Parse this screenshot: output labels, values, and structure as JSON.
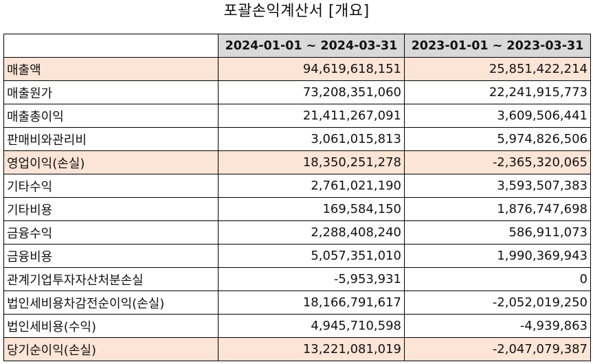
{
  "title": "포괄손익계산서 [개요]",
  "table": {
    "columns": [
      "",
      "2024-01-01 ~ 2024-03-31",
      "2023-01-01 ~ 2023-03-31"
    ],
    "highlight_color": "#fce4d6",
    "header_color": "#d9d9d9",
    "rows": [
      {
        "label": "매출액",
        "v1": "94,619,618,151",
        "v2": "25,851,422,214",
        "highlight": true
      },
      {
        "label": "매출원가",
        "v1": "73,208,351,060",
        "v2": "22,241,915,773",
        "highlight": false
      },
      {
        "label": "매출총이익",
        "v1": "21,411,267,091",
        "v2": "3,609,506,441",
        "highlight": false
      },
      {
        "label": "판매비와관리비",
        "v1": "3,061,015,813",
        "v2": "5,974,826,506",
        "highlight": false
      },
      {
        "label": "영업이익(손실)",
        "v1": "18,350,251,278",
        "v2": "-2,365,320,065",
        "highlight": true
      },
      {
        "label": "기타수익",
        "v1": "2,761,021,190",
        "v2": "3,593,507,383",
        "highlight": false
      },
      {
        "label": "기타비용",
        "v1": "169,584,150",
        "v2": "1,876,747,698",
        "highlight": false
      },
      {
        "label": "금융수익",
        "v1": "2,288,408,240",
        "v2": "586,911,073",
        "highlight": false
      },
      {
        "label": "금융비용",
        "v1": "5,057,351,010",
        "v2": "1,990,369,943",
        "highlight": false
      },
      {
        "label": "관계기업투자자산처분손실",
        "v1": "-5,953,931",
        "v2": "0",
        "highlight": false
      },
      {
        "label": "법인세비용차감전순이익(손실)",
        "v1": "18,166,791,617",
        "v2": "-2,052,019,250",
        "highlight": false
      },
      {
        "label": "법인세비용(수익)",
        "v1": "4,945,710,598",
        "v2": "-4,939,863",
        "highlight": false
      },
      {
        "label": "당기순이익(손실)",
        "v1": "13,221,081,019",
        "v2": "-2,047,079,387",
        "highlight": true
      }
    ]
  }
}
